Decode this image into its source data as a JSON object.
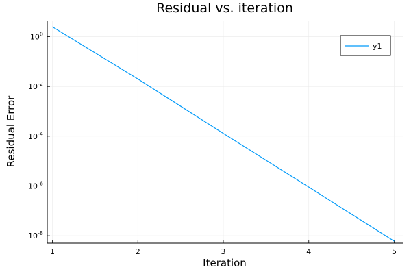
{
  "chart_data": {
    "type": "line",
    "title": "Residual vs. iteration",
    "xlabel": "Iteration",
    "ylabel": "Residual Error",
    "yscale": "log",
    "xlim": [
      0.94,
      5.1
    ],
    "ylim_log10": [
      -8.3,
      0.65
    ],
    "x_ticks": [
      {
        "value": 1,
        "label": "1"
      },
      {
        "value": 2,
        "label": "2"
      },
      {
        "value": 3,
        "label": "3"
      },
      {
        "value": 4,
        "label": "4"
      },
      {
        "value": 5,
        "label": "5"
      }
    ],
    "y_ticks": [
      {
        "exp": 0,
        "base": "10",
        "sup": "0"
      },
      {
        "exp": -2,
        "base": "10",
        "sup": "-2"
      },
      {
        "exp": -4,
        "base": "10",
        "sup": "-4"
      },
      {
        "exp": -6,
        "base": "10",
        "sup": "-6"
      },
      {
        "exp": -8,
        "base": "10",
        "sup": "-8"
      }
    ],
    "grid": true,
    "legend_position": "top-right",
    "series": [
      {
        "name": "y1",
        "color": "#009af9",
        "x": [
          1,
          2,
          3,
          4,
          5
        ],
        "y": [
          2.5,
          0.02,
          0.00013,
          9e-07,
          6e-09
        ]
      }
    ]
  }
}
